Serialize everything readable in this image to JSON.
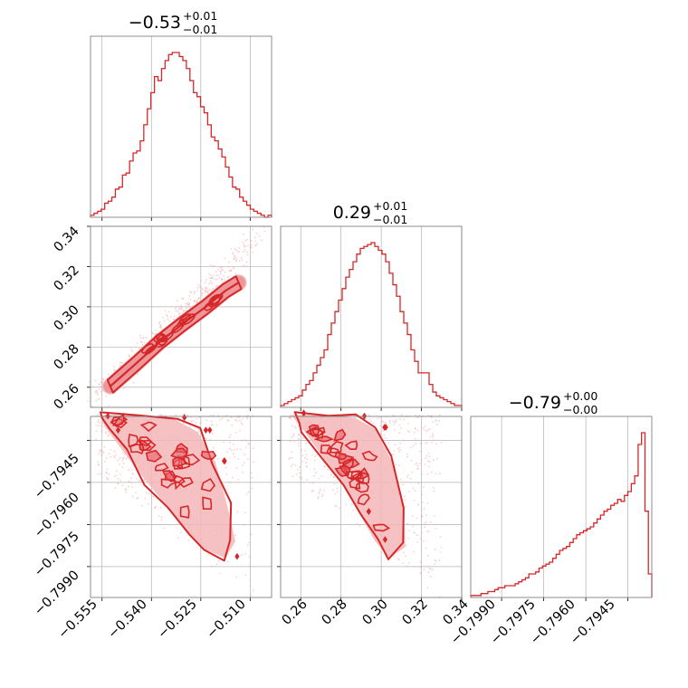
{
  "colors": {
    "main": "#d62728",
    "fill_outer": "#f4b6b9",
    "fill_inner": "#e8606a",
    "scatter": "#f2a7aa",
    "grid": "#b0b0b0",
    "frame": "#808080"
  },
  "panel_titles": [
    {
      "value": "−0.53",
      "sup": "+0.01",
      "sub": "−0.01"
    },
    {
      "value": "0.29",
      "sup": "+0.01",
      "sub": "−0.01"
    },
    {
      "value": "−0.79",
      "sup": "+0.00",
      "sub": "−0.00"
    }
  ],
  "tick_labels": {
    "p0": [
      "−0.555",
      "−0.540",
      "−0.525",
      "−0.510"
    ],
    "p1": [
      "0.26",
      "0.28",
      "0.30",
      "0.32",
      "0.34"
    ],
    "p2": [
      "−0.7990",
      "−0.7975",
      "−0.7960",
      "−0.7945"
    ]
  },
  "chart_data": {
    "type": "corner",
    "parameters": [
      {
        "label": "",
        "range": [
          -0.5585,
          -0.5035
        ],
        "ticks": [
          -0.555,
          -0.54,
          -0.525,
          -0.51
        ],
        "median": -0.53
      },
      {
        "label": "",
        "range": [
          0.25,
          0.34
        ],
        "ticks": [
          0.26,
          0.28,
          0.3,
          0.32,
          0.34
        ],
        "median": 0.29
      },
      {
        "label": "",
        "range": [
          -0.8001,
          -0.79365
        ],
        "ticks": [
          -0.799,
          -0.7975,
          -0.796,
          -0.7945
        ],
        "median": -0.79
      }
    ],
    "histograms": [
      {
        "parameter": 0,
        "bin_range": [
          -0.5585,
          -0.5035
        ],
        "counts": [
          1,
          2,
          3,
          4,
          7,
          8,
          10,
          14,
          15,
          21,
          22,
          28,
          32,
          33,
          38,
          46,
          54,
          62,
          70,
          68,
          74,
          78,
          81,
          82,
          82,
          80,
          78,
          74,
          68,
          62,
          60,
          55,
          52,
          46,
          40,
          38,
          34,
          30,
          25,
          20,
          15,
          14,
          10,
          8,
          6,
          4,
          3,
          2,
          1,
          0,
          1
        ]
      },
      {
        "parameter": 1,
        "bin_range": [
          0.25,
          0.34
        ],
        "counts": [
          1,
          2,
          3,
          4,
          5,
          6,
          9,
          12,
          14,
          18,
          22,
          26,
          30,
          38,
          44,
          50,
          56,
          62,
          68,
          72,
          76,
          80,
          83,
          84,
          85,
          86,
          84,
          82,
          80,
          76,
          70,
          64,
          58,
          50,
          44,
          38,
          30,
          24,
          18,
          18,
          18,
          12,
          8,
          6,
          5,
          4,
          3,
          2,
          1,
          1
        ]
      },
      {
        "parameter": 2,
        "bin_range": [
          -0.8001,
          -0.79365
        ],
        "counts": [
          1,
          1,
          1,
          2,
          2,
          3,
          3,
          4,
          5,
          5,
          6,
          6,
          6,
          7,
          8,
          9,
          10,
          12,
          12,
          13,
          15,
          16,
          17,
          18,
          20,
          22,
          24,
          25,
          26,
          28,
          30,
          32,
          33,
          34,
          35,
          36,
          38,
          40,
          42,
          44,
          45,
          47,
          48,
          50,
          49,
          52,
          54,
          58,
          62,
          78,
          84,
          44,
          12
        ]
      }
    ],
    "pairs": [
      {
        "x": 0,
        "y": 1,
        "density_axis_points": [
          [
            -0.5525,
            0.2605
          ],
          [
            -0.5445,
            0.272
          ],
          [
            -0.5375,
            0.2825
          ],
          [
            -0.5305,
            0.2915
          ],
          [
            -0.5235,
            0.3
          ],
          [
            -0.5175,
            0.308
          ],
          [
            -0.5135,
            0.312
          ]
        ],
        "scatter_extent": {
          "x": [
            -0.557,
            -0.507
          ],
          "y": [
            0.255,
            0.335
          ]
        }
      },
      {
        "x": 0,
        "y": 2,
        "density_region": [
          [
            -0.5545,
            -0.7936
          ],
          [
            -0.544,
            -0.7936
          ],
          [
            -0.533,
            -0.79375
          ],
          [
            -0.526,
            -0.7942
          ],
          [
            -0.5205,
            -0.7953
          ],
          [
            -0.517,
            -0.7968
          ],
          [
            -0.5145,
            -0.7981
          ],
          [
            -0.5175,
            -0.7987
          ],
          [
            -0.5235,
            -0.7984
          ],
          [
            -0.529,
            -0.7978
          ],
          [
            -0.535,
            -0.7969
          ],
          [
            -0.542,
            -0.7959
          ],
          [
            -0.5485,
            -0.7949
          ],
          [
            -0.553,
            -0.7942
          ],
          [
            -0.5555,
            -0.7937
          ]
        ],
        "scatter_extent": {
          "x": [
            -0.557,
            -0.509
          ],
          "y": [
            -0.7996,
            -0.7936
          ]
        }
      },
      {
        "x": 1,
        "y": 2,
        "density_region": [
          [
            0.2555,
            -0.7936
          ],
          [
            0.272,
            -0.7936
          ],
          [
            0.287,
            -0.7937
          ],
          [
            0.297,
            -0.7941
          ],
          [
            0.305,
            -0.7952
          ],
          [
            0.311,
            -0.7969
          ],
          [
            0.312,
            -0.7983
          ],
          [
            0.304,
            -0.7987
          ],
          [
            0.297,
            -0.7981
          ],
          [
            0.289,
            -0.7971
          ],
          [
            0.28,
            -0.796
          ],
          [
            0.27,
            -0.795
          ],
          [
            0.262,
            -0.7942
          ],
          [
            0.2575,
            -0.7938
          ]
        ],
        "scatter_extent": {
          "x": [
            0.254,
            0.33
          ],
          "y": [
            -0.7996,
            -0.7936
          ]
        }
      }
    ]
  }
}
